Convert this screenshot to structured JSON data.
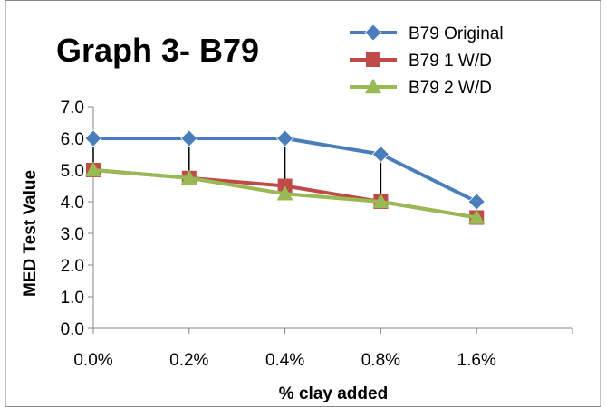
{
  "chart_data": {
    "type": "line",
    "title": "Graph 3- B79",
    "xlabel": "% clay added",
    "ylabel": "MED Test Value",
    "categories": [
      "0.0%",
      "0.2%",
      "0.4%",
      "0.8%",
      "1.6%"
    ],
    "y_tick_labels": [
      "0.0",
      "1.0",
      "2.0",
      "3.0",
      "4.0",
      "5.0",
      "6.0",
      "7.0"
    ],
    "ylim": [
      0,
      7
    ],
    "grid": false,
    "legend_position": "top-right",
    "high_low_lines": true,
    "series": [
      {
        "name": "B79 Original",
        "values": [
          6.0,
          6.0,
          6.0,
          5.5,
          4.0
        ],
        "color": "#4a7ebb",
        "marker": "diamond"
      },
      {
        "name": "B79 1 W/D",
        "values": [
          5.0,
          4.75,
          4.5,
          4.0,
          3.5
        ],
        "color": "#be4b48",
        "marker": "square"
      },
      {
        "name": "B79 2 W/D",
        "values": [
          5.0,
          4.75,
          4.25,
          4.0,
          3.5
        ],
        "color": "#98b954",
        "marker": "triangle"
      }
    ]
  }
}
